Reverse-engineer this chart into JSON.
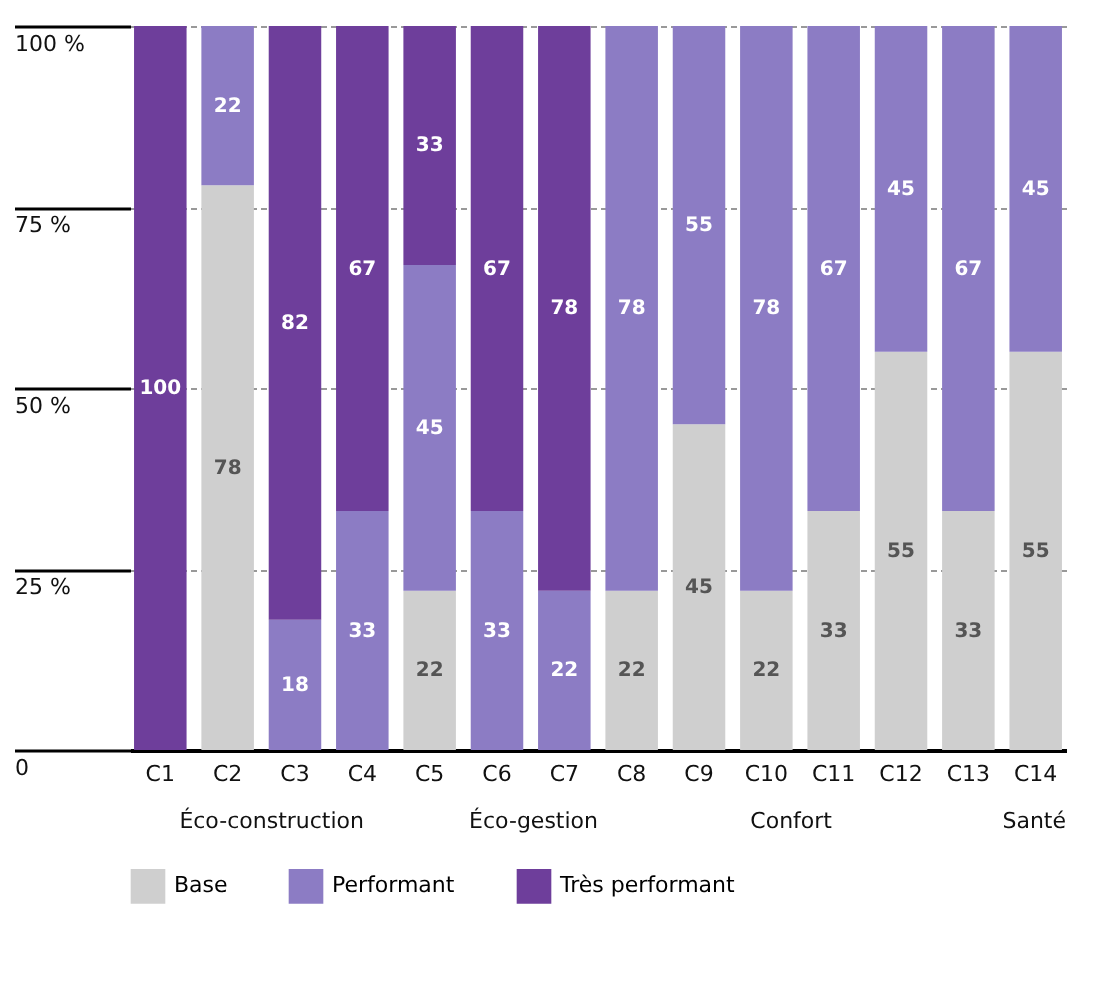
{
  "chart_data": {
    "type": "bar",
    "stacked": true,
    "categories": [
      "C1",
      "C2",
      "C3",
      "C4",
      "C5",
      "C6",
      "C7",
      "C8",
      "C9",
      "C10",
      "C11",
      "C12",
      "C13",
      "C14"
    ],
    "series": [
      {
        "name": "Base",
        "color": "#cfcfcf",
        "values": [
          null,
          78,
          null,
          null,
          22,
          null,
          null,
          22,
          45,
          22,
          33,
          55,
          33,
          55
        ]
      },
      {
        "name": "Performant",
        "color": "#8c7cc4",
        "values": [
          null,
          22,
          18,
          33,
          45,
          33,
          22,
          78,
          55,
          78,
          67,
          45,
          67,
          45
        ]
      },
      {
        "name": "Très performant",
        "color": "#6e3e9b",
        "values": [
          100,
          null,
          82,
          67,
          33,
          67,
          78,
          null,
          null,
          null,
          null,
          null,
          null,
          null
        ]
      }
    ],
    "ylim": [
      0,
      100
    ],
    "yticks": [
      0,
      {
        "value": 25,
        "label": "25 %"
      },
      {
        "value": 50,
        "label": "50 %"
      },
      {
        "value": 75,
        "label": "75 %"
      },
      {
        "value": 100,
        "label": "100 %"
      }
    ],
    "grid": "y",
    "legend": "bottom",
    "data_labels": true,
    "annotations": [
      "Éco-construction",
      "Éco-gestion",
      "Confort",
      "Santé"
    ]
  }
}
